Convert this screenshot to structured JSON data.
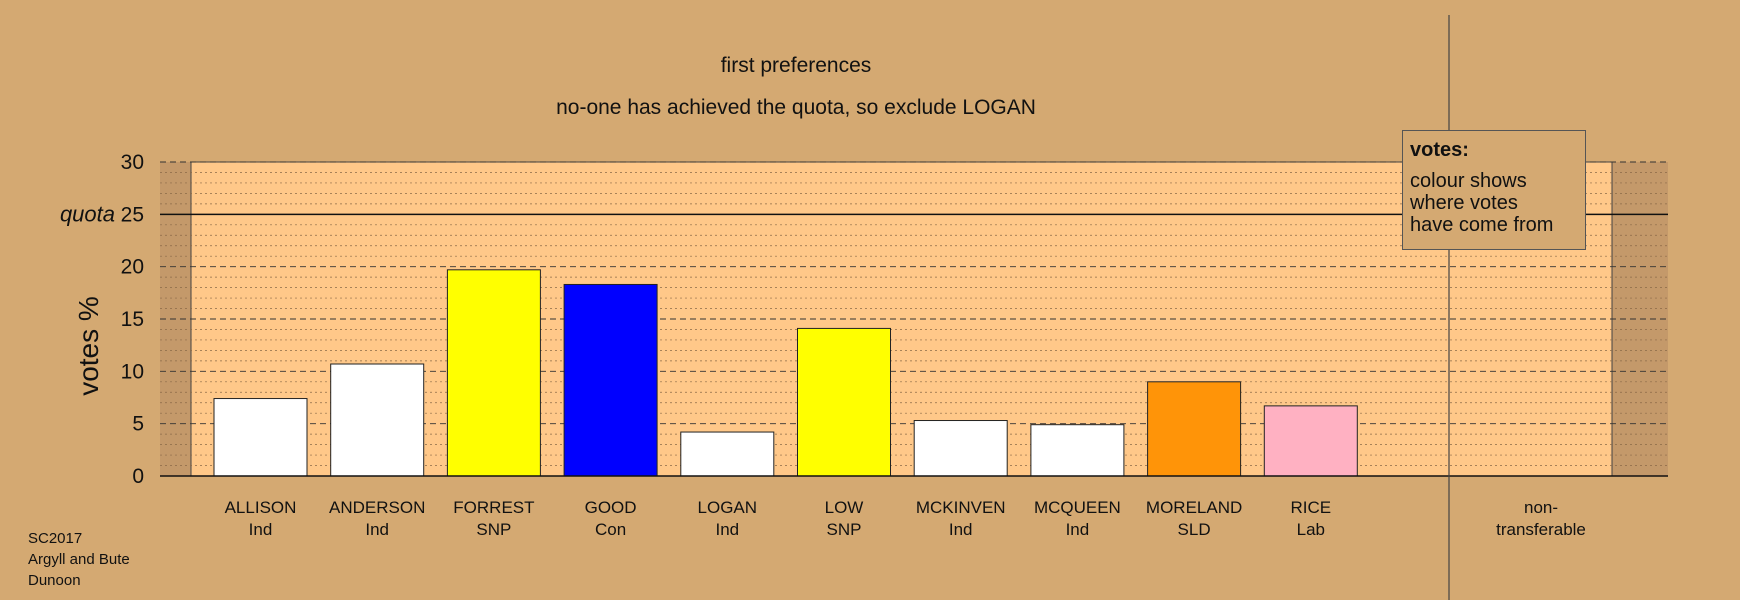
{
  "chart_data": {
    "type": "bar",
    "title": "first preferences",
    "subtitle": "no-one has achieved the quota, so exclude LOGAN",
    "ylabel": "votes %",
    "ylim": [
      0,
      30
    ],
    "yticks": [
      0,
      5,
      10,
      15,
      20,
      25,
      30
    ],
    "quota": 25,
    "quota_label": "quota",
    "categories": [
      {
        "name": "ALLISON",
        "party": "Ind"
      },
      {
        "name": "ANDERSON",
        "party": "Ind"
      },
      {
        "name": "FORREST",
        "party": "SNP"
      },
      {
        "name": "GOOD",
        "party": "Con"
      },
      {
        "name": "LOGAN",
        "party": "Ind"
      },
      {
        "name": "LOW",
        "party": "SNP"
      },
      {
        "name": "MCKINVEN",
        "party": "Ind"
      },
      {
        "name": "MCQUEEN",
        "party": "Ind"
      },
      {
        "name": "MORELAND",
        "party": "SLD"
      },
      {
        "name": "RICE",
        "party": "Lab"
      }
    ],
    "values": [
      7.4,
      10.7,
      19.7,
      18.3,
      4.2,
      14.1,
      5.3,
      4.9,
      9.0,
      6.7
    ],
    "colors": [
      "#ffffff",
      "#ffffff",
      "#ffff00",
      "#0000ff",
      "#ffffff",
      "#ffff00",
      "#ffffff",
      "#ffffff",
      "#ff9408",
      "#ffb1c2"
    ],
    "extra_category": [
      "non-",
      "transferable"
    ],
    "legend": {
      "title": "votes:",
      "lines": [
        "colour shows",
        "where votes",
        "have come from"
      ]
    }
  },
  "footer": [
    "SC2017",
    "Argyll and Bute",
    "Dunoon"
  ]
}
